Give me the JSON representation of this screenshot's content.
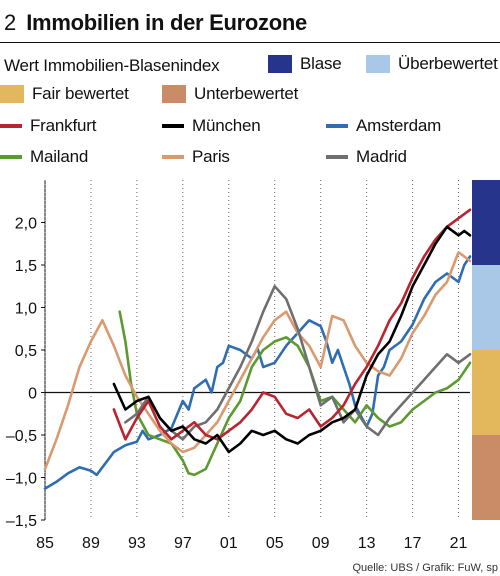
{
  "title": {
    "number": "2",
    "text": "Immobilien in der Eurozone"
  },
  "legend": {
    "index_label": "Wert Immobilien-Blasenindex",
    "zones": [
      {
        "key": "blase",
        "label": "Blase",
        "color": "#27348b"
      },
      {
        "key": "ueberbewertet",
        "label": "Überbewertet",
        "color": "#a9c7e6"
      },
      {
        "key": "fair",
        "label": "Fair bewertet",
        "color": "#e3b85c"
      },
      {
        "key": "unter",
        "label": "Unterbewertet",
        "color": "#c98c66"
      }
    ],
    "cities": [
      {
        "key": "frankfurt",
        "label": "Frankfurt",
        "color": "#b8242f"
      },
      {
        "key": "muenchen",
        "label": "München",
        "color": "#000000"
      },
      {
        "key": "amsterdam",
        "label": "Amsterdam",
        "color": "#2f6db3"
      },
      {
        "key": "mailand",
        "label": "Mailand",
        "color": "#5c9a2f"
      },
      {
        "key": "paris",
        "label": "Paris",
        "color": "#d89a6e"
      },
      {
        "key": "madrid",
        "label": "Madrid",
        "color": "#6f6f6f"
      }
    ]
  },
  "chart_data": {
    "type": "line",
    "title": "Immobilien in der Eurozone",
    "ylim": [
      -1.5,
      2.5
    ],
    "xlim": [
      1985,
      2022
    ],
    "y_ticks": [
      -1.5,
      -1.0,
      -0.5,
      0,
      0.5,
      1.0,
      1.5,
      2.0
    ],
    "y_tick_labels": [
      "–1,5",
      "–1,0",
      "–0,5",
      "0",
      "0,5",
      "1,0",
      "1,5",
      "2,0"
    ],
    "x_ticks": [
      1985,
      1989,
      1993,
      1997,
      2001,
      2005,
      2009,
      2013,
      2017,
      2021
    ],
    "x_tick_labels": [
      "85",
      "89",
      "93",
      "97",
      "01",
      "05",
      "09",
      "13",
      "17",
      "21"
    ],
    "grid": "dotted vertical",
    "zone_bands": [
      {
        "key": "blase",
        "from": 1.5,
        "to": 2.5,
        "color": "#27348b"
      },
      {
        "key": "ueberbewertet",
        "from": 0.5,
        "to": 1.5,
        "color": "#a9c7e6"
      },
      {
        "key": "fair",
        "from": -0.5,
        "to": 0.5,
        "color": "#e3b85c"
      },
      {
        "key": "unter",
        "from": -1.5,
        "to": -0.5,
        "color": "#c98c66"
      }
    ],
    "series": [
      {
        "name": "Amsterdam",
        "color": "#2f6db3",
        "points": [
          [
            1985.0,
            -1.13
          ],
          [
            1986.0,
            -1.05
          ],
          [
            1987.0,
            -0.95
          ],
          [
            1988.0,
            -0.88
          ],
          [
            1989.0,
            -0.92
          ],
          [
            1989.5,
            -0.97
          ],
          [
            1990.0,
            -0.88
          ],
          [
            1991.0,
            -0.7
          ],
          [
            1992.0,
            -0.62
          ],
          [
            1993.0,
            -0.58
          ],
          [
            1993.5,
            -0.45
          ],
          [
            1994.0,
            -0.55
          ],
          [
            1995.0,
            -0.5
          ],
          [
            1996.0,
            -0.42
          ],
          [
            1997.0,
            -0.1
          ],
          [
            1997.5,
            -0.2
          ],
          [
            1998.0,
            0.05
          ],
          [
            1999.0,
            0.15
          ],
          [
            1999.5,
            0.0
          ],
          [
            2000.0,
            0.3
          ],
          [
            2000.5,
            0.35
          ],
          [
            2001.0,
            0.55
          ],
          [
            2002.0,
            0.5
          ],
          [
            2003.0,
            0.4
          ],
          [
            2003.5,
            0.52
          ],
          [
            2004.0,
            0.3
          ],
          [
            2005.0,
            0.35
          ],
          [
            2006.0,
            0.55
          ],
          [
            2007.0,
            0.7
          ],
          [
            2008.0,
            0.85
          ],
          [
            2009.0,
            0.78
          ],
          [
            2009.5,
            0.6
          ],
          [
            2010.0,
            0.35
          ],
          [
            2010.5,
            0.5
          ],
          [
            2011.0,
            0.3
          ],
          [
            2011.5,
            0.1
          ],
          [
            2012.0,
            -0.15
          ],
          [
            2013.0,
            -0.4
          ],
          [
            2013.5,
            -0.25
          ],
          [
            2014.0,
            0.2
          ],
          [
            2014.5,
            0.3
          ],
          [
            2015.0,
            0.5
          ],
          [
            2016.0,
            0.6
          ],
          [
            2017.0,
            0.8
          ],
          [
            2018.0,
            1.1
          ],
          [
            2019.0,
            1.3
          ],
          [
            2020.0,
            1.4
          ],
          [
            2021.0,
            1.3
          ],
          [
            2021.5,
            1.5
          ],
          [
            2022.0,
            1.6
          ]
        ]
      },
      {
        "name": "Mailand",
        "color": "#5c9a2f",
        "points": [
          [
            1991.5,
            0.95
          ],
          [
            1992.0,
            0.6
          ],
          [
            1992.5,
            0.1
          ],
          [
            1993.0,
            -0.25
          ],
          [
            1994.0,
            -0.5
          ],
          [
            1995.0,
            -0.55
          ],
          [
            1996.0,
            -0.6
          ],
          [
            1997.0,
            -0.8
          ],
          [
            1997.5,
            -0.95
          ],
          [
            1998.0,
            -0.97
          ],
          [
            1999.0,
            -0.9
          ],
          [
            2000.0,
            -0.6
          ],
          [
            2001.0,
            -0.3
          ],
          [
            2002.0,
            -0.1
          ],
          [
            2003.0,
            0.3
          ],
          [
            2004.0,
            0.5
          ],
          [
            2005.0,
            0.6
          ],
          [
            2006.0,
            0.65
          ],
          [
            2007.0,
            0.55
          ],
          [
            2008.0,
            0.3
          ],
          [
            2009.0,
            -0.1
          ],
          [
            2010.0,
            -0.05
          ],
          [
            2011.0,
            -0.2
          ],
          [
            2012.0,
            -0.35
          ],
          [
            2013.0,
            -0.15
          ],
          [
            2014.0,
            -0.3
          ],
          [
            2015.0,
            -0.4
          ],
          [
            2016.0,
            -0.35
          ],
          [
            2017.0,
            -0.2
          ],
          [
            2018.0,
            -0.1
          ],
          [
            2019.0,
            0.0
          ],
          [
            2020.0,
            0.05
          ],
          [
            2021.0,
            0.15
          ],
          [
            2021.5,
            0.25
          ],
          [
            2022.0,
            0.35
          ]
        ]
      },
      {
        "name": "Paris",
        "color": "#d89a6e",
        "points": [
          [
            1985.0,
            -0.9
          ],
          [
            1986.0,
            -0.55
          ],
          [
            1987.0,
            -0.15
          ],
          [
            1988.0,
            0.3
          ],
          [
            1989.0,
            0.6
          ],
          [
            1990.0,
            0.85
          ],
          [
            1991.0,
            0.55
          ],
          [
            1992.0,
            0.2
          ],
          [
            1993.0,
            -0.05
          ],
          [
            1994.0,
            -0.25
          ],
          [
            1995.0,
            -0.45
          ],
          [
            1996.0,
            -0.6
          ],
          [
            1997.0,
            -0.7
          ],
          [
            1998.0,
            -0.65
          ],
          [
            1999.0,
            -0.5
          ],
          [
            2000.0,
            -0.35
          ],
          [
            2001.0,
            -0.1
          ],
          [
            2002.0,
            0.15
          ],
          [
            2003.0,
            0.4
          ],
          [
            2004.0,
            0.65
          ],
          [
            2005.0,
            0.85
          ],
          [
            2006.0,
            0.95
          ],
          [
            2007.0,
            0.7
          ],
          [
            2008.0,
            0.55
          ],
          [
            2009.0,
            0.3
          ],
          [
            2010.0,
            0.9
          ],
          [
            2011.0,
            0.85
          ],
          [
            2012.0,
            0.55
          ],
          [
            2013.0,
            0.35
          ],
          [
            2014.0,
            0.25
          ],
          [
            2015.0,
            0.2
          ],
          [
            2016.0,
            0.4
          ],
          [
            2017.0,
            0.7
          ],
          [
            2018.0,
            0.9
          ],
          [
            2019.0,
            1.15
          ],
          [
            2020.0,
            1.3
          ],
          [
            2021.0,
            1.65
          ],
          [
            2021.5,
            1.6
          ],
          [
            2022.0,
            1.55
          ]
        ]
      },
      {
        "name": "Madrid",
        "color": "#6f6f6f",
        "points": [
          [
            1992.0,
            -0.35
          ],
          [
            1993.0,
            -0.25
          ],
          [
            1994.0,
            -0.05
          ],
          [
            1995.0,
            -0.3
          ],
          [
            1996.0,
            -0.45
          ],
          [
            1997.0,
            -0.55
          ],
          [
            1998.0,
            -0.4
          ],
          [
            1999.0,
            -0.35
          ],
          [
            2000.0,
            -0.2
          ],
          [
            2001.0,
            0.05
          ],
          [
            2002.0,
            0.3
          ],
          [
            2003.0,
            0.6
          ],
          [
            2004.0,
            0.95
          ],
          [
            2005.0,
            1.25
          ],
          [
            2006.0,
            1.1
          ],
          [
            2007.0,
            0.75
          ],
          [
            2008.0,
            0.3
          ],
          [
            2009.0,
            -0.15
          ],
          [
            2010.0,
            -0.05
          ],
          [
            2011.0,
            -0.35
          ],
          [
            2012.0,
            -0.2
          ],
          [
            2013.0,
            -0.4
          ],
          [
            2014.0,
            -0.5
          ],
          [
            2015.0,
            -0.3
          ],
          [
            2016.0,
            -0.15
          ],
          [
            2017.0,
            0.0
          ],
          [
            2018.0,
            0.15
          ],
          [
            2019.0,
            0.3
          ],
          [
            2020.0,
            0.45
          ],
          [
            2021.0,
            0.35
          ],
          [
            2022.0,
            0.45
          ]
        ]
      },
      {
        "name": "Frankfurt",
        "color": "#b8242f",
        "points": [
          [
            1991.0,
            -0.2
          ],
          [
            1992.0,
            -0.55
          ],
          [
            1993.0,
            -0.3
          ],
          [
            1994.0,
            -0.1
          ],
          [
            1995.0,
            -0.4
          ],
          [
            1996.0,
            -0.55
          ],
          [
            1997.0,
            -0.45
          ],
          [
            1998.0,
            -0.35
          ],
          [
            1999.0,
            -0.5
          ],
          [
            2000.0,
            -0.55
          ],
          [
            2001.0,
            -0.45
          ],
          [
            2002.0,
            -0.35
          ],
          [
            2003.0,
            -0.2
          ],
          [
            2004.0,
            0.0
          ],
          [
            2005.0,
            -0.05
          ],
          [
            2006.0,
            -0.25
          ],
          [
            2007.0,
            -0.3
          ],
          [
            2008.0,
            -0.2
          ],
          [
            2009.0,
            -0.4
          ],
          [
            2010.0,
            -0.3
          ],
          [
            2011.0,
            -0.15
          ],
          [
            2012.0,
            0.1
          ],
          [
            2013.0,
            0.3
          ],
          [
            2014.0,
            0.55
          ],
          [
            2015.0,
            0.85
          ],
          [
            2016.0,
            1.05
          ],
          [
            2017.0,
            1.35
          ],
          [
            2018.0,
            1.6
          ],
          [
            2019.0,
            1.8
          ],
          [
            2020.0,
            1.95
          ],
          [
            2021.0,
            2.05
          ],
          [
            2022.0,
            2.15
          ]
        ]
      },
      {
        "name": "München",
        "color": "#000000",
        "points": [
          [
            1991.0,
            0.1
          ],
          [
            1992.0,
            -0.2
          ],
          [
            1993.0,
            -0.1
          ],
          [
            1994.0,
            -0.05
          ],
          [
            1995.0,
            -0.3
          ],
          [
            1996.0,
            -0.45
          ],
          [
            1997.0,
            -0.4
          ],
          [
            1998.0,
            -0.55
          ],
          [
            1999.0,
            -0.6
          ],
          [
            2000.0,
            -0.5
          ],
          [
            2001.0,
            -0.7
          ],
          [
            2002.0,
            -0.6
          ],
          [
            2003.0,
            -0.45
          ],
          [
            2004.0,
            -0.5
          ],
          [
            2005.0,
            -0.45
          ],
          [
            2006.0,
            -0.55
          ],
          [
            2007.0,
            -0.6
          ],
          [
            2008.0,
            -0.5
          ],
          [
            2009.0,
            -0.45
          ],
          [
            2010.0,
            -0.35
          ],
          [
            2011.0,
            -0.3
          ],
          [
            2012.0,
            -0.2
          ],
          [
            2013.0,
            0.2
          ],
          [
            2014.0,
            0.45
          ],
          [
            2015.0,
            0.6
          ],
          [
            2016.0,
            0.9
          ],
          [
            2017.0,
            1.25
          ],
          [
            2018.0,
            1.5
          ],
          [
            2019.0,
            1.75
          ],
          [
            2020.0,
            1.95
          ],
          [
            2021.0,
            1.85
          ],
          [
            2021.5,
            1.9
          ],
          [
            2022.0,
            1.85
          ]
        ]
      }
    ]
  },
  "source": "Quelle: UBS / Grafik: FuW, sp"
}
